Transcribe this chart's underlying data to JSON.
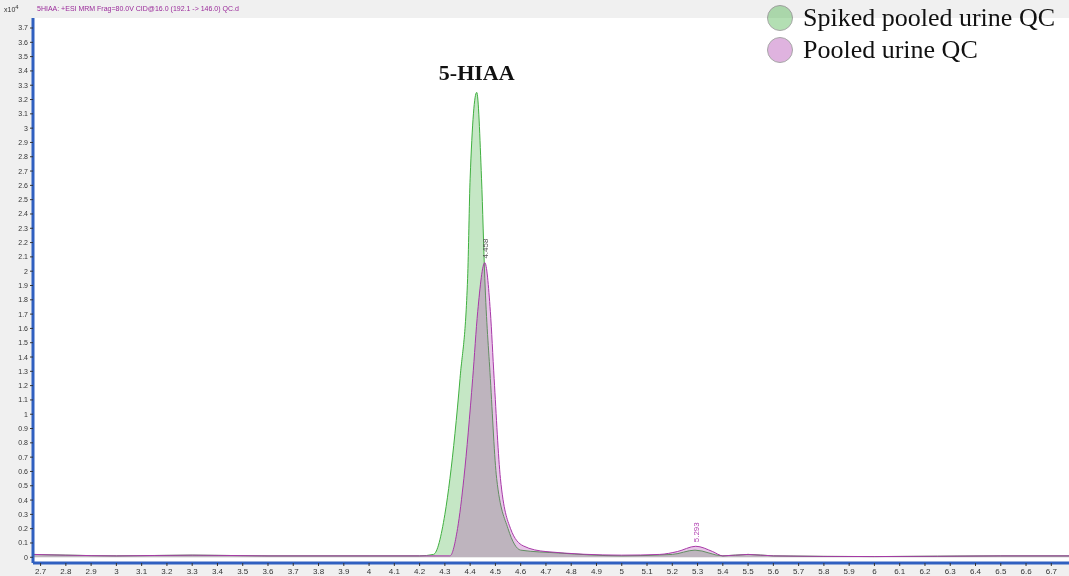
{
  "chart_data": {
    "type": "area",
    "annotations": [
      "5HIAA: +ESI MRM Frag=80.0V CID@16.0 (192.1 -> 146.0) QC.d",
      {
        "text": "5-HIAA",
        "x": 4.426,
        "y": 3.25
      },
      {
        "text": "4.458",
        "x": 4.458,
        "y": 2.06
      },
      {
        "text": "5.293",
        "x": 5.293,
        "y": 0.077
      }
    ],
    "ylabel": "x10$^{4}$",
    "series": [
      {
        "name": "Spiked pooled urine QC",
        "color": "#40b040",
        "x": [
          2.67,
          2.8,
          3.0,
          3.3,
          3.6,
          4.0,
          4.2,
          4.255,
          4.3,
          4.32,
          4.36,
          4.39,
          4.4,
          4.426,
          4.445,
          4.458,
          4.48,
          4.505,
          4.55,
          4.6,
          4.75,
          5.0,
          5.2,
          5.29,
          5.4,
          5.5,
          5.6,
          6.0,
          6.5,
          6.77
        ],
        "values": [
          0.02,
          0.015,
          0.01,
          0.015,
          0.01,
          0.01,
          0.01,
          0.02,
          0.3,
          0.55,
          1.25,
          1.95,
          2.65,
          3.25,
          2.65,
          1.95,
          1.25,
          0.55,
          0.2,
          0.05,
          0.03,
          0.01,
          0.02,
          0.05,
          0.01,
          0.02,
          0.01,
          0.005,
          0.01,
          0.01
        ]
      },
      {
        "name": "Pooled urine QC",
        "color": "#b040b0",
        "x": [
          2.67,
          2.8,
          3.0,
          3.3,
          3.6,
          4.0,
          4.2,
          4.32,
          4.35,
          4.375,
          4.41,
          4.43,
          4.458,
          4.48,
          4.495,
          4.52,
          4.56,
          4.61,
          4.7,
          5.0,
          5.15,
          5.22,
          5.293,
          5.36,
          5.4,
          5.5,
          5.6,
          6.0,
          6.5,
          6.77
        ],
        "values": [
          0.02,
          0.015,
          0.01,
          0.015,
          0.01,
          0.01,
          0.01,
          0.01,
          0.2,
          0.55,
          1.25,
          1.72,
          2.06,
          1.72,
          1.25,
          0.55,
          0.2,
          0.08,
          0.04,
          0.015,
          0.02,
          0.04,
          0.077,
          0.04,
          0.01,
          0.02,
          0.01,
          0.005,
          0.01,
          0.01
        ]
      }
    ],
    "xlim": [
      2.67,
      6.77
    ],
    "xticks": [
      2.7,
      2.8,
      2.9,
      3,
      3.1,
      3.2,
      3.3,
      3.4,
      3.5,
      3.6,
      3.7,
      3.8,
      3.9,
      4,
      4.1,
      4.2,
      4.3,
      4.4,
      4.5,
      4.6,
      4.7,
      4.8,
      4.9,
      5,
      5.1,
      5.2,
      5.3,
      5.4,
      5.5,
      5.6,
      5.7,
      5.8,
      5.9,
      6,
      6.1,
      6.2,
      6.3,
      6.4,
      6.5,
      6.6,
      6.7
    ],
    "ylim": [
      -0.04,
      3.77
    ],
    "yticks": [
      0,
      0.1,
      0.2,
      0.3,
      0.4,
      0.5,
      0.6,
      0.7,
      0.8,
      0.9,
      1,
      1.1,
      1.2,
      1.3,
      1.4,
      1.5,
      1.6,
      1.7,
      1.8,
      1.9,
      2,
      2.1,
      2.2,
      2.3,
      2.4,
      2.5,
      2.6,
      2.7,
      2.8,
      2.9,
      3,
      3.1,
      3.2,
      3.3,
      3.4,
      3.5,
      3.6,
      3.7
    ],
    "grid": false,
    "legend": "top right"
  }
}
